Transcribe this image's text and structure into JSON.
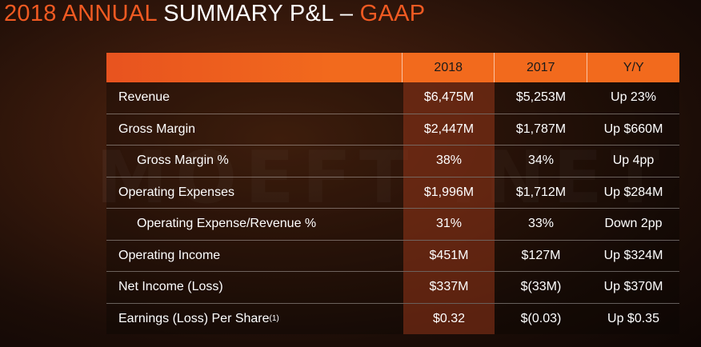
{
  "title": {
    "part1": "2018 ANNUAL ",
    "part2": "SUMMARY P&L – ",
    "part3": "GAAP"
  },
  "watermark": "MOEFT .NET",
  "table": {
    "headers": [
      "",
      "2018",
      "2017",
      "Y/Y"
    ],
    "rows": [
      {
        "label": "Revenue",
        "v2018": "$6,475M",
        "v2017": "$5,253M",
        "yy": "Up  23%"
      },
      {
        "label": "Gross Margin",
        "v2018": "$2,447M",
        "v2017": "$1,787M",
        "yy": "Up $660M"
      },
      {
        "label": "Gross Margin %",
        "v2018": "38%",
        "v2017": "34%",
        "yy": "Up  4pp"
      },
      {
        "label": "Operating Expenses",
        "v2018": "$1,996M",
        "v2017": "$1,712M",
        "yy": "Up $284M"
      },
      {
        "label": "Operating Expense/Revenue %",
        "v2018": "31%",
        "v2017": "33%",
        "yy": "Down 2pp"
      },
      {
        "label": "Operating Income",
        "v2018": "$451M",
        "v2017": "$127M",
        "yy": "Up $324M"
      },
      {
        "label": "Net Income (Loss)",
        "v2018": "$337M",
        "v2017": "$(33M)",
        "yy": "Up $370M"
      },
      {
        "label": "Earnings (Loss) Per Share",
        "footnote": "(1)",
        "v2018": "$0.32",
        "v2017": "$(0.03)",
        "yy": "Up $0.35"
      }
    ]
  },
  "colors": {
    "accent": "#f15a22",
    "header_bg": "#f26a1d",
    "background": "#2a1309"
  }
}
